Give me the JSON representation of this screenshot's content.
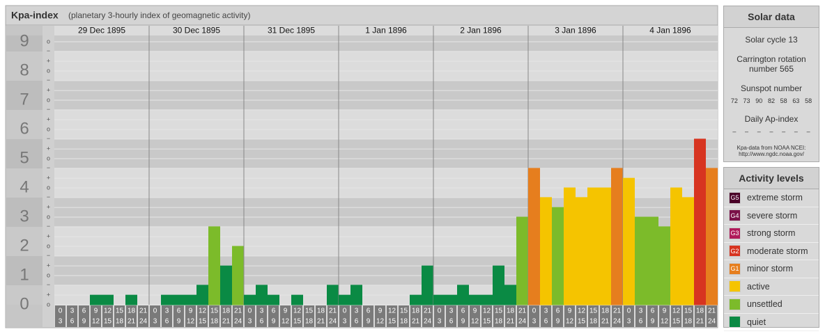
{
  "chart_data": {
    "type": "bar",
    "title": "Kpa-index",
    "subtitle": "(planetary 3-hourly index of geomagnetic activity)",
    "ylim": [
      0,
      9
    ],
    "yticks": [
      0,
      1,
      2,
      3,
      4,
      5,
      6,
      7,
      8,
      9
    ],
    "yminor_ticks": [
      {
        "value": 0,
        "label": "o"
      },
      {
        "value": 0.33,
        "label": "+"
      },
      {
        "value": 0.67,
        "label": "−"
      },
      {
        "value": 1,
        "label": "o"
      },
      {
        "value": 1.33,
        "label": "+"
      },
      {
        "value": 1.67,
        "label": "−"
      },
      {
        "value": 2,
        "label": "o"
      },
      {
        "value": 2.33,
        "label": "+"
      },
      {
        "value": 2.67,
        "label": "−"
      },
      {
        "value": 3,
        "label": "o"
      },
      {
        "value": 3.33,
        "label": "+"
      },
      {
        "value": 3.67,
        "label": "−"
      },
      {
        "value": 4,
        "label": "o"
      },
      {
        "value": 4.33,
        "label": "+"
      },
      {
        "value": 4.67,
        "label": "−"
      },
      {
        "value": 5,
        "label": "o"
      },
      {
        "value": 5.33,
        "label": "+"
      },
      {
        "value": 5.67,
        "label": "−"
      },
      {
        "value": 6,
        "label": "o"
      },
      {
        "value": 6.33,
        "label": "+"
      },
      {
        "value": 6.67,
        "label": "−"
      },
      {
        "value": 7,
        "label": "o"
      },
      {
        "value": 7.33,
        "label": "+"
      },
      {
        "value": 7.67,
        "label": "−"
      },
      {
        "value": 8,
        "label": "o"
      },
      {
        "value": 8.33,
        "label": "+"
      },
      {
        "value": 8.67,
        "label": "−"
      },
      {
        "value": 9,
        "label": "o"
      }
    ],
    "interval_starts": [
      "0",
      "3",
      "6",
      "9",
      "12",
      "15",
      "18",
      "21"
    ],
    "interval_ends": [
      "3",
      "6",
      "9",
      "12",
      "15",
      "18",
      "21",
      "24"
    ],
    "days": [
      {
        "date": "29 Dec 1895",
        "values": [
          0,
          0,
          0,
          0.33,
          0.33,
          0,
          0.33,
          0
        ],
        "colors": [
          "#0a8a44",
          "#0a8a44",
          "#0a8a44",
          "#0a8a44",
          "#0a8a44",
          "#0a8a44",
          "#0a8a44",
          "#0a8a44"
        ]
      },
      {
        "date": "30 Dec 1895",
        "values": [
          0,
          0.33,
          0.33,
          0.33,
          0.67,
          2.67,
          1.33,
          2
        ],
        "colors": [
          "#0a8a44",
          "#0a8a44",
          "#0a8a44",
          "#0a8a44",
          "#0a8a44",
          "#7cbb2a",
          "#0a8a44",
          "#7cbb2a"
        ]
      },
      {
        "date": "31 Dec 1895",
        "values": [
          0.33,
          0.67,
          0.33,
          0,
          0.33,
          0,
          0,
          0.67
        ],
        "colors": [
          "#0a8a44",
          "#0a8a44",
          "#0a8a44",
          "#0a8a44",
          "#0a8a44",
          "#0a8a44",
          "#0a8a44",
          "#0a8a44"
        ]
      },
      {
        "date": "1 Jan 1896",
        "values": [
          0.33,
          0.67,
          0,
          0,
          0,
          0,
          0.33,
          1.33
        ],
        "colors": [
          "#0a8a44",
          "#0a8a44",
          "#0a8a44",
          "#0a8a44",
          "#0a8a44",
          "#0a8a44",
          "#0a8a44",
          "#0a8a44"
        ]
      },
      {
        "date": "2 Jan 1896",
        "values": [
          0.33,
          0.33,
          0.67,
          0.33,
          0.33,
          1.33,
          0.67,
          3
        ],
        "colors": [
          "#0a8a44",
          "#0a8a44",
          "#0a8a44",
          "#0a8a44",
          "#0a8a44",
          "#0a8a44",
          "#0a8a44",
          "#7cbb2a"
        ]
      },
      {
        "date": "3 Jan 1896",
        "values": [
          4.67,
          3.67,
          3.33,
          4,
          3.67,
          4,
          4,
          4.67
        ],
        "colors": [
          "#e67e1e",
          "#f5c400",
          "#7cbb2a",
          "#f5c400",
          "#f5c400",
          "#f5c400",
          "#f5c400",
          "#e67e1e"
        ]
      },
      {
        "date": "4 Jan 1896",
        "values": [
          4.33,
          3,
          3,
          2.67,
          4,
          3.67,
          5.67,
          4.67
        ],
        "colors": [
          "#f5c400",
          "#7cbb2a",
          "#7cbb2a",
          "#7cbb2a",
          "#f5c400",
          "#f5c400",
          "#d73420",
          "#e67e1e"
        ]
      }
    ]
  },
  "solar_data": {
    "title": "Solar data",
    "cycle": "Solar cycle 13",
    "carrington": "Carrington rotation number 565",
    "sunspot_title": "Sunspot number",
    "sunspots": [
      72,
      73,
      90,
      82,
      58,
      63,
      58
    ],
    "ap_title": "Daily Ap-index",
    "ap": [
      "–",
      "–",
      "–",
      "–",
      "–",
      "–",
      "–"
    ],
    "source": "Kpa-data from NOAA NCEI: http://www.ngdc.noaa.gov/"
  },
  "activity_levels": {
    "title": "Activity levels",
    "items": [
      {
        "badge": "G5",
        "label": "extreme storm",
        "color": "#4a0028"
      },
      {
        "badge": "G4",
        "label": "severe storm",
        "color": "#7a1048"
      },
      {
        "badge": "G3",
        "label": "strong storm",
        "color": "#b0195a"
      },
      {
        "badge": "G2",
        "label": "moderate storm",
        "color": "#d73420"
      },
      {
        "badge": "G1",
        "label": "minor storm",
        "color": "#e67e1e"
      },
      {
        "badge": "",
        "label": "active",
        "color": "#f5c400"
      },
      {
        "badge": "",
        "label": "unsettled",
        "color": "#7cbb2a"
      },
      {
        "badge": "",
        "label": "quiet",
        "color": "#0a8a44"
      }
    ]
  }
}
